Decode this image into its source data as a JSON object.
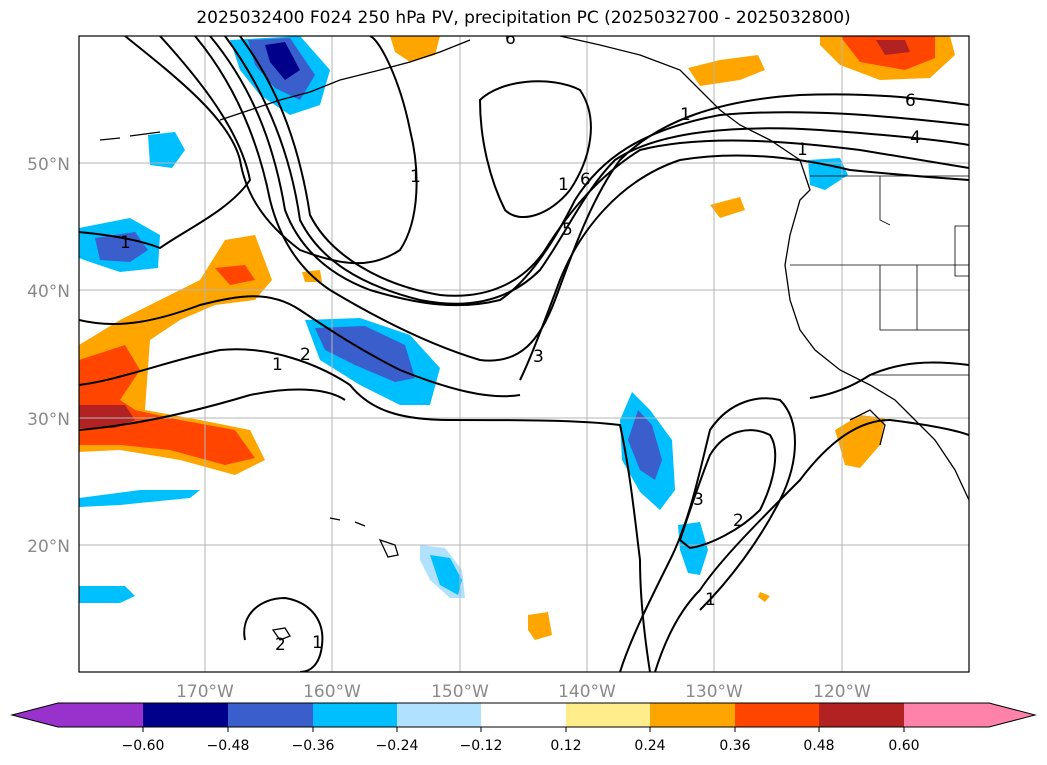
{
  "title": "2025032400 F024 250 hPa PV, precipitation PC (2025032700 - 2025032800)",
  "map": {
    "lat_labels": [
      "50°N",
      "40°N",
      "30°N",
      "20°N"
    ],
    "lon_labels": [
      "170°W",
      "160°W",
      "150°W",
      "140°W",
      "130°W",
      "120°W"
    ]
  },
  "contour_labels": {
    "l1": "1",
    "l2": "1",
    "l3": "1",
    "l4": "1",
    "l5": "1",
    "l6": "1",
    "l7": "1",
    "l8": "1",
    "l9": "2",
    "l10": "2",
    "l11": "2",
    "l12": "3",
    "l13": "3",
    "l14": "4",
    "l15": "5",
    "l16": "6",
    "l17": "6",
    "l18": "6"
  },
  "colorbar": {
    "ticks": [
      "−0.60",
      "−0.48",
      "−0.36",
      "−0.24",
      "−0.12",
      "0.12",
      "0.24",
      "0.36",
      "0.48",
      "0.60"
    ],
    "colors": [
      "#9932cc",
      "#00008b",
      "#3a5fcd",
      "#00bfff",
      "#b0e2ff",
      "#ffffff",
      "#ffec8b",
      "#ffa500",
      "#ff4500",
      "#b22222",
      "#ff82ab"
    ]
  }
}
